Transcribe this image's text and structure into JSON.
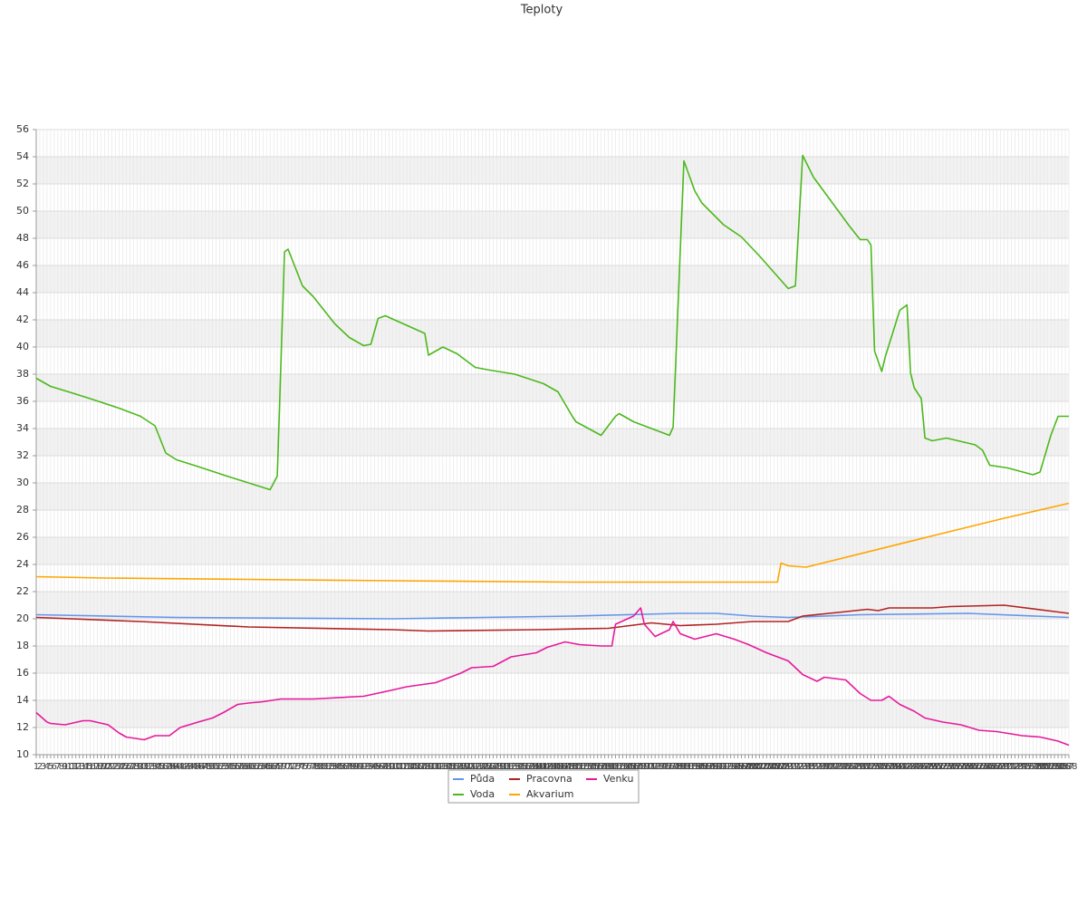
{
  "chart_data": {
    "type": "line",
    "title": "Teploty",
    "xlim": [
      1,
      288
    ],
    "xticks": [
      1,
      2,
      3,
      4,
      5,
      6,
      7,
      8,
      9,
      10,
      11,
      12,
      13,
      14,
      15,
      16,
      17,
      18,
      19,
      20,
      21,
      22,
      23,
      24,
      25,
      26,
      27,
      28,
      29,
      30,
      31,
      32,
      33,
      34,
      35,
      36,
      37,
      38,
      39,
      40,
      41,
      42,
      43,
      44,
      45,
      46,
      47,
      48,
      49,
      50,
      51,
      52,
      53,
      54,
      55,
      56,
      57,
      58,
      59,
      60,
      61,
      62,
      63,
      64,
      65,
      66,
      67,
      68,
      69,
      70,
      71,
      72,
      73,
      74,
      75,
      76,
      77,
      78,
      79,
      80,
      81,
      82,
      83,
      84,
      85,
      86,
      87,
      88,
      89,
      90,
      91,
      92,
      93,
      94,
      95,
      96,
      97,
      98,
      99,
      100,
      101,
      102,
      103,
      104,
      105,
      106,
      107,
      108,
      109,
      110,
      111,
      112,
      113,
      114,
      115,
      116,
      117,
      118,
      119,
      120,
      121,
      122,
      123,
      124,
      125,
      126,
      127,
      128,
      129,
      130,
      131,
      132,
      133,
      134,
      135,
      136,
      137,
      138,
      139,
      140,
      141,
      142,
      143,
      144,
      145,
      146,
      147,
      148,
      149,
      150,
      151,
      152,
      153,
      154,
      155,
      156,
      157,
      158,
      159,
      160,
      161,
      162,
      163,
      164,
      165,
      166,
      167,
      168,
      169,
      170,
      171,
      172,
      173,
      174,
      175,
      176,
      177,
      178,
      179,
      180,
      181,
      182,
      183,
      184,
      185,
      186,
      187,
      188,
      189,
      190,
      191,
      192,
      193,
      194,
      195,
      196,
      197,
      198,
      199,
      200,
      201,
      202,
      203,
      204,
      205,
      206,
      207,
      208,
      209,
      210,
      211,
      212,
      213,
      214,
      215,
      216,
      217,
      218,
      219,
      220,
      221,
      222,
      223,
      224,
      225,
      226,
      227,
      228,
      229,
      230,
      231,
      232,
      233,
      234,
      235,
      236,
      237,
      238,
      239,
      240,
      241,
      242,
      243,
      244,
      245,
      246,
      247,
      248,
      249,
      250,
      251,
      252,
      253,
      254,
      255,
      256,
      257,
      258,
      259,
      260,
      261,
      262,
      263,
      264,
      265,
      266,
      267,
      268,
      269,
      270,
      271,
      272,
      273,
      274,
      275,
      276,
      277,
      278,
      279,
      280,
      281,
      282,
      283,
      284,
      285,
      286,
      287,
      288
    ],
    "ylim": [
      10,
      56
    ],
    "yticks": [
      10,
      12,
      14,
      16,
      18,
      20,
      22,
      24,
      26,
      28,
      30,
      32,
      34,
      36,
      38,
      40,
      42,
      44,
      46,
      48,
      50,
      52,
      54,
      56
    ],
    "grid": true,
    "series": [
      {
        "name": "Půda",
        "color": "#6495ed",
        "x": [
          1,
          40,
          100,
          150,
          180,
          190,
          200,
          210,
          230,
          260,
          288
        ],
        "values": [
          20.3,
          20.1,
          20.0,
          20.2,
          20.4,
          20.4,
          20.2,
          20.1,
          20.3,
          20.4,
          20.1
        ]
      },
      {
        "name": "Voda",
        "color": "#4cb81c",
        "x": [
          1,
          5,
          10,
          16,
          24,
          30,
          34,
          37,
          40,
          46,
          54,
          60,
          66,
          68,
          70,
          71,
          75,
          78,
          84,
          88,
          92,
          94,
          96,
          98,
          109,
          110,
          114,
          118,
          123,
          127,
          134,
          142,
          146,
          150,
          151,
          158,
          162,
          163,
          167,
          177,
          178,
          181,
          184,
          186,
          192,
          197,
          202,
          210,
          212,
          214,
          217,
          227,
          230,
          232,
          233,
          234,
          236,
          237,
          241,
          243,
          244,
          245,
          247,
          248,
          250,
          254,
          262,
          264,
          266,
          271,
          278,
          280,
          283,
          285,
          288
        ],
        "values": [
          37.7,
          37.1,
          36.7,
          36.2,
          35.5,
          34.9,
          34.2,
          32.2,
          31.7,
          31.2,
          30.5,
          30.0,
          29.5,
          30.5,
          47.0,
          47.2,
          44.5,
          43.7,
          41.7,
          40.7,
          40.1,
          40.2,
          42.1,
          42.3,
          41.0,
          39.4,
          40.0,
          39.5,
          38.5,
          38.3,
          38.0,
          37.3,
          36.7,
          34.9,
          34.5,
          33.5,
          34.9,
          35.1,
          34.5,
          33.5,
          34.1,
          53.7,
          51.5,
          50.6,
          49.0,
          48.1,
          46.7,
          44.3,
          44.5,
          54.1,
          52.5,
          48.9,
          47.9,
          47.9,
          47.5,
          39.7,
          38.2,
          39.3,
          42.7,
          43.1,
          38.1,
          37.0,
          36.2,
          33.3,
          33.1,
          33.3,
          32.8,
          32.4,
          31.3,
          31.1,
          30.6,
          30.8,
          33.5,
          34.9,
          34.9
        ]
      },
      {
        "name": "Pracovna",
        "color": "#b22222",
        "x": [
          1,
          30,
          60,
          100,
          110,
          140,
          160,
          172,
          180,
          190,
          200,
          210,
          214,
          225,
          232,
          235,
          238,
          250,
          255,
          270,
          285,
          288
        ],
        "values": [
          20.1,
          19.8,
          19.4,
          19.2,
          19.1,
          19.2,
          19.3,
          19.7,
          19.5,
          19.6,
          19.8,
          19.8,
          20.2,
          20.5,
          20.7,
          20.6,
          20.8,
          20.8,
          20.9,
          21.0,
          20.5,
          20.4
        ]
      },
      {
        "name": "Akvarium",
        "color": "#ffa500",
        "x": [
          1,
          20,
          60,
          100,
          150,
          207,
          208,
          210,
          215,
          250,
          270,
          288
        ],
        "values": [
          23.1,
          23.0,
          22.9,
          22.8,
          22.7,
          22.7,
          24.1,
          23.9,
          23.8,
          26.1,
          27.4,
          28.5
        ]
      },
      {
        "name": "Venku",
        "color": "#e6199b",
        "x": [
          1,
          4,
          5,
          9,
          14,
          16,
          21,
          24,
          26,
          31,
          34,
          38,
          41,
          46,
          50,
          53,
          57,
          60,
          64,
          69,
          78,
          92,
          99,
          104,
          112,
          119,
          122,
          128,
          133,
          140,
          143,
          148,
          152,
          158,
          161,
          162,
          167,
          169,
          170,
          173,
          177,
          178,
          180,
          184,
          190,
          195,
          199,
          204,
          210,
          214,
          218,
          220,
          226,
          230,
          233,
          236,
          238,
          241,
          245,
          248,
          253,
          258,
          263,
          268,
          275,
          280,
          285,
          288
        ],
        "values": [
          13.1,
          12.4,
          12.3,
          12.2,
          12.5,
          12.5,
          12.2,
          11.6,
          11.3,
          11.1,
          11.4,
          11.4,
          12.0,
          12.4,
          12.7,
          13.1,
          13.7,
          13.8,
          13.9,
          14.1,
          14.1,
          14.3,
          14.7,
          15.0,
          15.3,
          16.0,
          16.4,
          16.5,
          17.2,
          17.5,
          17.9,
          18.3,
          18.1,
          18.0,
          18.0,
          19.6,
          20.2,
          20.8,
          19.6,
          18.7,
          19.2,
          19.8,
          18.9,
          18.5,
          18.9,
          18.5,
          18.1,
          17.5,
          16.9,
          15.9,
          15.4,
          15.7,
          15.5,
          14.5,
          14.0,
          14.0,
          14.3,
          13.7,
          13.2,
          12.7,
          12.4,
          12.2,
          11.8,
          11.7,
          11.4,
          11.3,
          11.0,
          10.7
        ]
      }
    ]
  }
}
